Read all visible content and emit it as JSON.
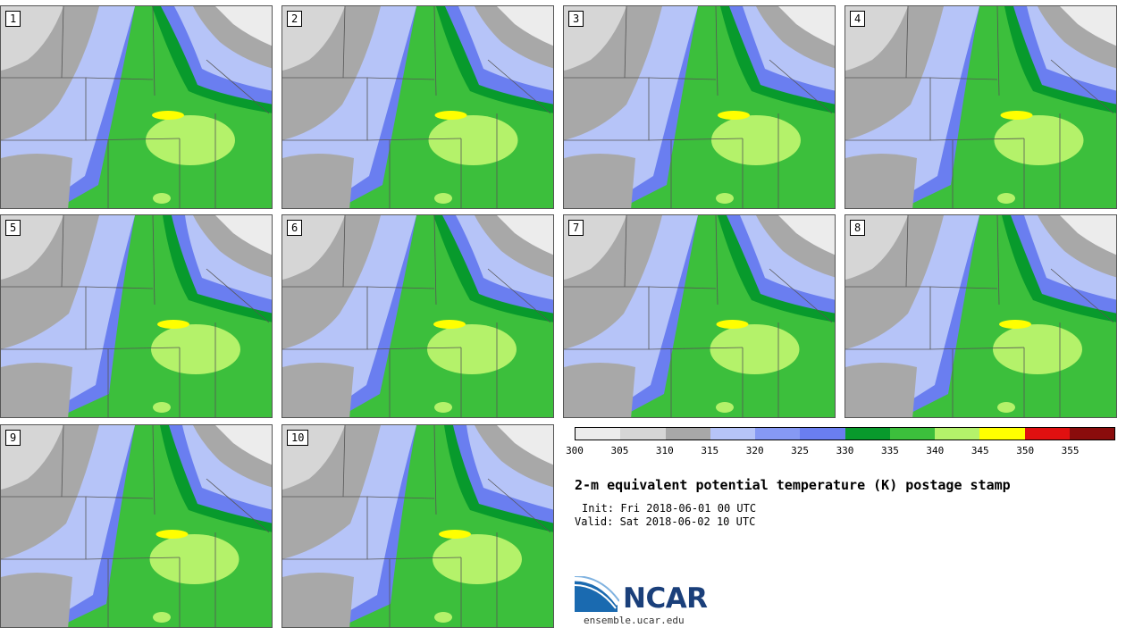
{
  "panels": [
    {
      "label": "1"
    },
    {
      "label": "2"
    },
    {
      "label": "3"
    },
    {
      "label": "4"
    },
    {
      "label": "5"
    },
    {
      "label": "6"
    },
    {
      "label": "7"
    },
    {
      "label": "8"
    },
    {
      "label": "9"
    },
    {
      "label": "10"
    }
  ],
  "colorbar": {
    "colors": [
      "#ececec",
      "#d6d6d6",
      "#a8a8a8",
      "#b6c4f8",
      "#8699f4",
      "#6a7ef0",
      "#089a2c",
      "#3cbf3c",
      "#b4f26a",
      "#ffff00",
      "#e01010",
      "#8a0c0c"
    ],
    "ticks": [
      "300",
      "305",
      "310",
      "315",
      "320",
      "325",
      "330",
      "335",
      "340",
      "345",
      "350",
      "355"
    ]
  },
  "title": "2-m equivalent potential temperature (K) postage stamp",
  "init": "Init: Fri 2018-06-01 00 UTC",
  "valid": "Valid: Sat 2018-06-02 10 UTC",
  "logo_text": "NCAR",
  "url": "ensemble.ucar.edu"
}
